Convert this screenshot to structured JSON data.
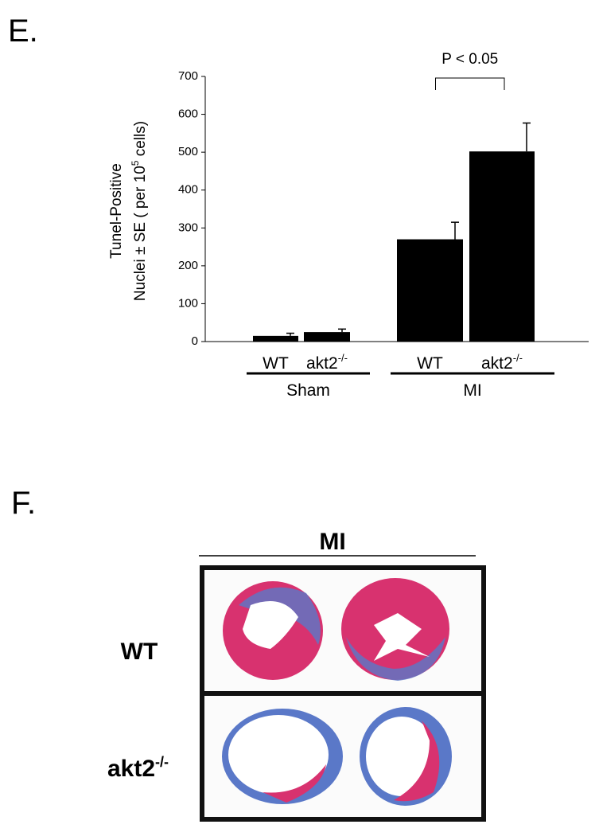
{
  "chart_data": {
    "type": "bar",
    "panel": "E.",
    "y_label": {
      "line1": "Tunel-Positive",
      "line2_start": "Nuclei ± SE ( per 10",
      "line2_sup": "5",
      "line2_end": " cells)"
    },
    "categories": [
      "WT",
      "akt2",
      "WT",
      "akt2"
    ],
    "category_superscripts": [
      null,
      "-/-",
      null,
      "-/-"
    ],
    "groups": [
      {
        "name": "Sham",
        "span": [
          0,
          1
        ]
      },
      {
        "name": "MI",
        "span": [
          2,
          3
        ]
      }
    ],
    "values": [
      15,
      25,
      270,
      502
    ],
    "errors": [
      7,
      8,
      45,
      75
    ],
    "color": "#000000",
    "ylim": [
      0,
      700
    ],
    "yticks": [
      0,
      100,
      200,
      300,
      400,
      500,
      600,
      700
    ],
    "annotation": {
      "text": "P < 0.05",
      "from": 2,
      "to": 3
    }
  },
  "panel_f": {
    "label": "F.",
    "header": "MI",
    "rows": [
      {
        "label": "WT",
        "sup": null
      },
      {
        "label": "akt2",
        "sup": "-/-"
      }
    ]
  }
}
